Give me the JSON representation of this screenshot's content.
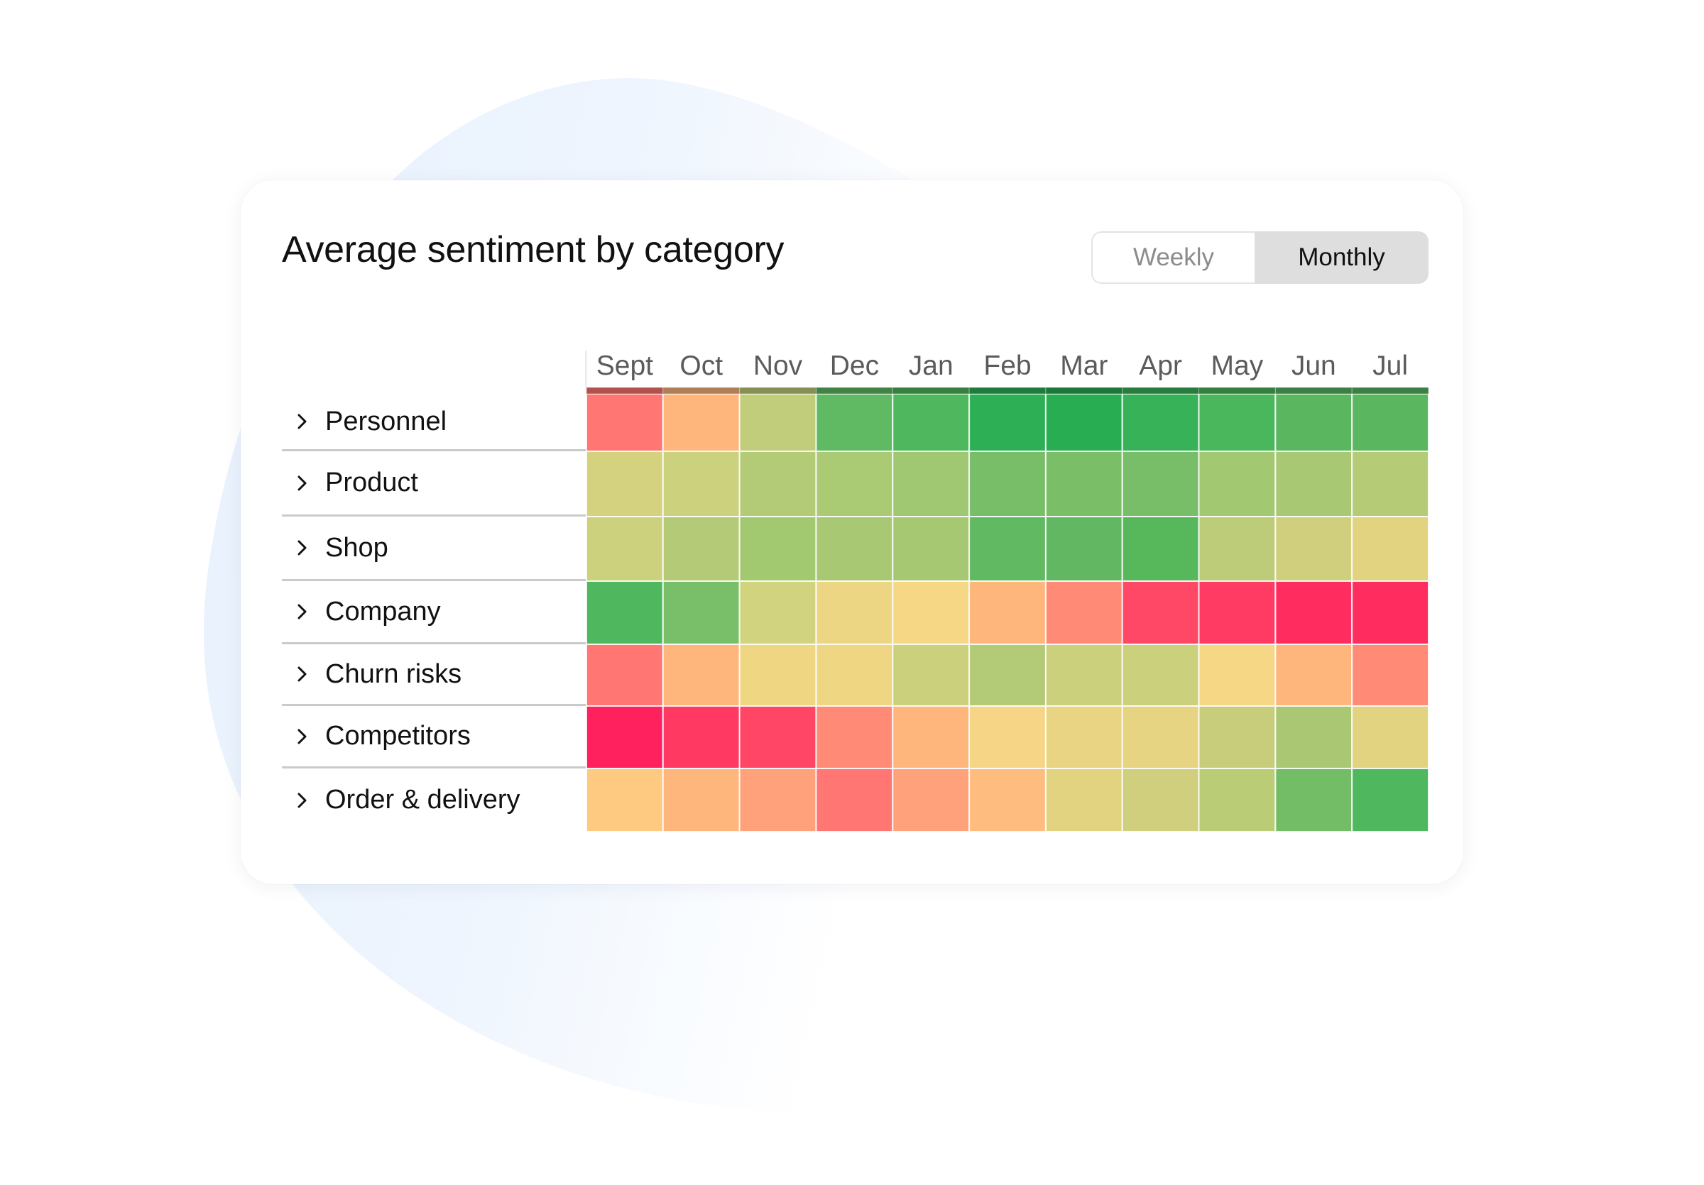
{
  "card": {
    "title": "Average sentiment by category",
    "toggle": {
      "options": [
        "Weekly",
        "Monthly"
      ],
      "selected": "Monthly"
    }
  },
  "icons": {
    "row_expand": "chevron-right-icon"
  },
  "colors": {
    "blob": "#eaf3fd",
    "toggle_active_bg": "#dedede",
    "toggle_inactive_text": "#8c8c8c",
    "month_label": "#5b5b5b",
    "separator": "#cacaca"
  },
  "chart_data": {
    "type": "heatmap",
    "title": "Average sentiment by category",
    "x_categories": [
      "Sept",
      "Oct",
      "Nov",
      "Dec",
      "Jan",
      "Feb",
      "Mar",
      "Apr",
      "May",
      "Jun",
      "Jul"
    ],
    "y_categories": [
      "Personnel",
      "Product",
      "Shop",
      "Company",
      "Churn risks",
      "Competitors",
      "Order & delivery"
    ],
    "color_scale": {
      "negative": "#ff205e",
      "neutral": "#f6d786",
      "positive": "#28ad53"
    },
    "cell_colors": [
      [
        "#ff7672",
        "#feb67d",
        "#c1cd7b",
        "#5fba63",
        "#4fb75d",
        "#2db055",
        "#28ad53",
        "#38b259",
        "#4bb75c",
        "#5ab760",
        "#5ab760"
      ],
      [
        "#d4d27e",
        "#ccd17e",
        "#b3cb77",
        "#aacb74",
        "#a0c873",
        "#78bd68",
        "#7abf68",
        "#78be68",
        "#a2c872",
        "#a8c873",
        "#b6cb76"
      ],
      [
        "#ccd17e",
        "#b4ca76",
        "#a2c870",
        "#a8c874",
        "#a7c873",
        "#61b961",
        "#62b862",
        "#56b75b",
        "#bccc79",
        "#d0cf7e",
        "#e1d37f"
      ],
      [
        "#4fb75d",
        "#79bf6a",
        "#d2d37f",
        "#ecd683",
        "#f6d786",
        "#feb67d",
        "#ff8b76",
        "#ff4766",
        "#ff3a63",
        "#ff2d5f",
        "#ff2d5f"
      ],
      [
        "#ff7672",
        "#feb67d",
        "#eed683",
        "#eed683",
        "#cbd07d",
        "#b3ca76",
        "#cbd07d",
        "#cbd07d",
        "#f6d786",
        "#feb67d",
        "#ff8b76"
      ],
      [
        "#ff205e",
        "#ff3962",
        "#ff4666",
        "#ff8b76",
        "#feb67d",
        "#f6d686",
        "#e8d482",
        "#e6d482",
        "#c7cd7a",
        "#aac873",
        "#e1d37f"
      ],
      [
        "#fec980",
        "#feb67d",
        "#ffa17a",
        "#ff7672",
        "#ffa17a",
        "#febc7e",
        "#e1d37f",
        "#cfcf7d",
        "#bbcc77",
        "#72bd66",
        "#4fb75d"
      ]
    ],
    "header_band": true,
    "legend": "none"
  }
}
